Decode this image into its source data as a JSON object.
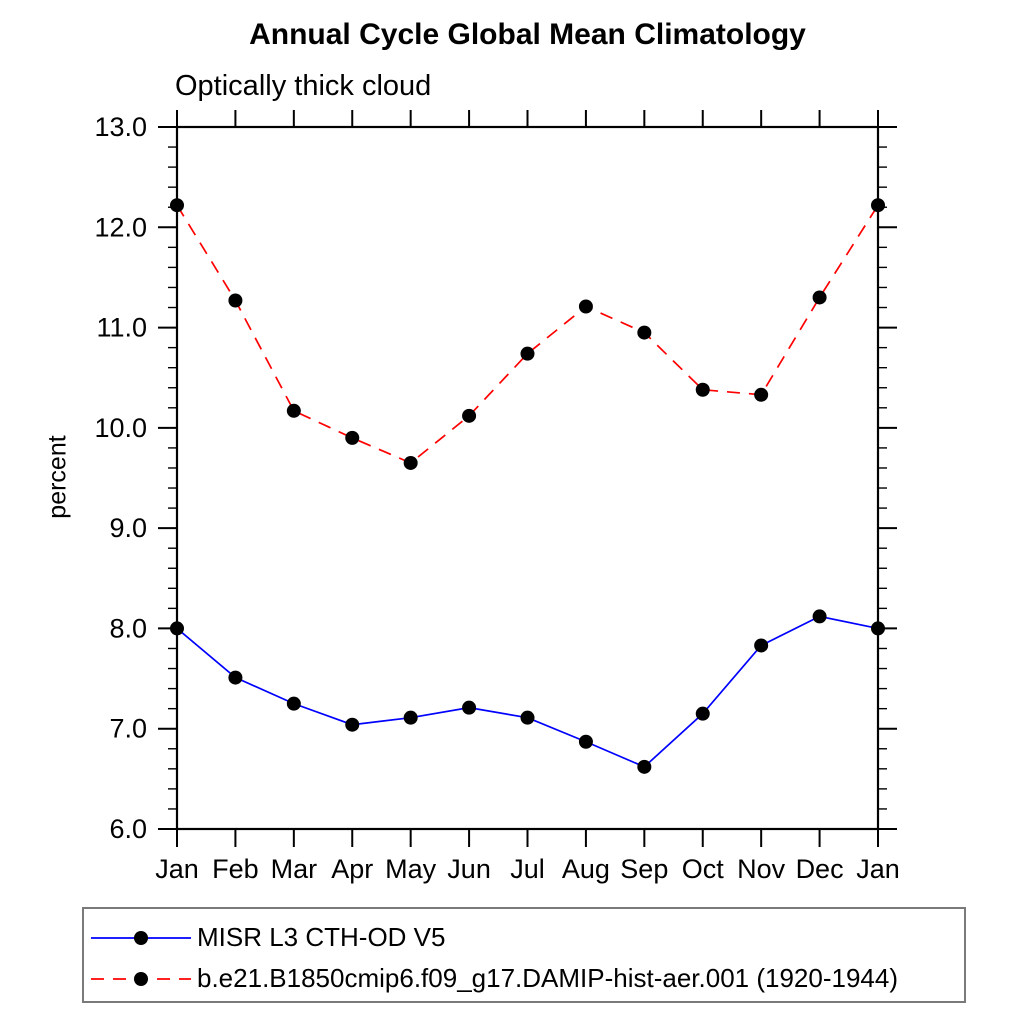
{
  "chart_data": {
    "type": "line",
    "title": "Annual Cycle Global Mean Climatology",
    "subtitle": "Optically thick cloud",
    "xlabel": "",
    "ylabel": "percent",
    "categories": [
      "Jan",
      "Feb",
      "Mar",
      "Apr",
      "May",
      "Jun",
      "Jul",
      "Aug",
      "Sep",
      "Oct",
      "Nov",
      "Dec",
      "Jan"
    ],
    "ylim": [
      6.0,
      13.0
    ],
    "ytick_major": 1.0,
    "ytick_minor": 0.2,
    "ytick_label_format": "one_decimal",
    "grid": false,
    "legend_position": "bottom-left framed box",
    "axis_color": "#000000",
    "marker": "filled-circle",
    "marker_color": "#000000",
    "series": [
      {
        "name": "MISR L3 CTH-OD V5",
        "color": "#0000ff",
        "line_style": "solid",
        "values": [
          8.0,
          7.51,
          7.25,
          7.04,
          7.11,
          7.21,
          7.11,
          6.87,
          6.62,
          7.15,
          7.83,
          8.12,
          8.0
        ]
      },
      {
        "name": "b.e21.B1850cmip6.f09_g17.DAMIP-hist-aer.001 (1920-1944)",
        "color": "#ff0000",
        "line_style": "dashed",
        "values": [
          12.22,
          11.27,
          10.17,
          9.9,
          9.65,
          10.12,
          10.74,
          11.21,
          10.95,
          10.38,
          10.33,
          11.3,
          12.22
        ]
      }
    ]
  }
}
